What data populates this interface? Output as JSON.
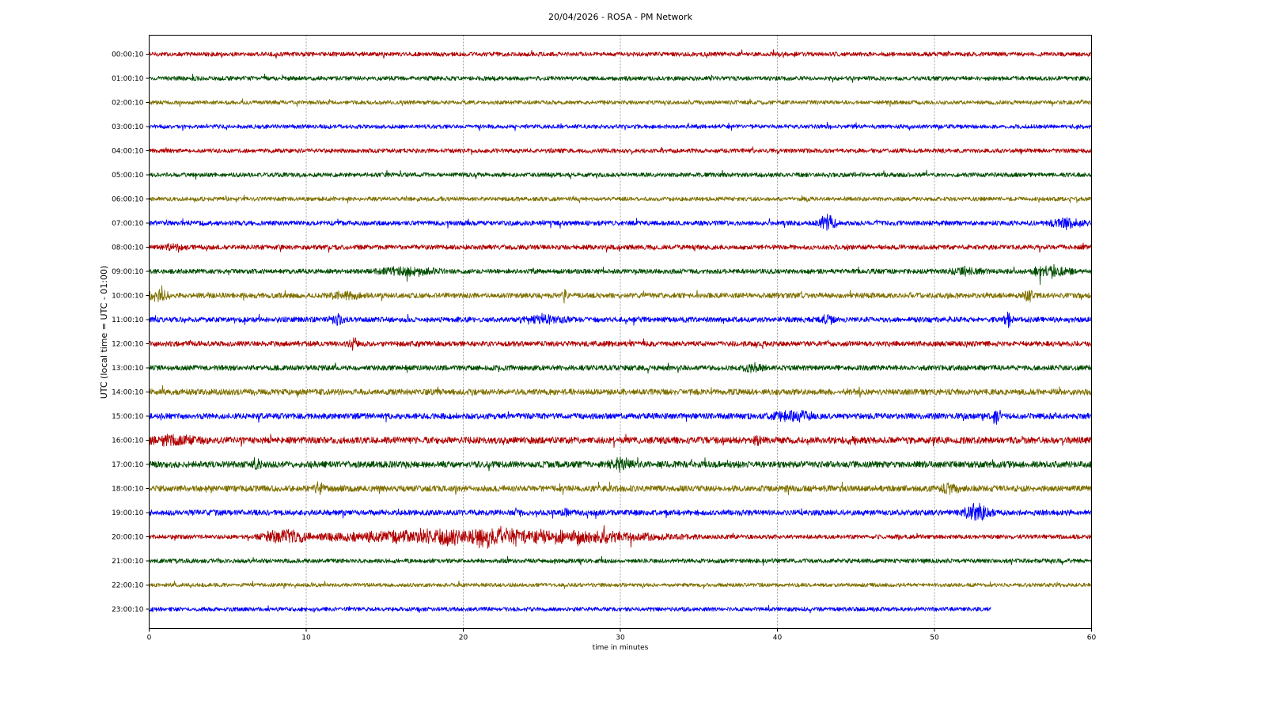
{
  "chart_data": {
    "type": "line",
    "title": "20/04/2026 - ROSA - PM Network",
    "xlabel": "time in minutes",
    "ylabel": "UTC (local time = UTC - 01:00)",
    "xlim": [
      0,
      60
    ],
    "x_ticks": [
      "0",
      "10",
      "20",
      "30",
      "40",
      "50",
      "60"
    ],
    "grid": "vertical dotted lines at major x ticks",
    "legend": "none",
    "color_cycle": [
      "#b10000",
      "#004d00",
      "#7f7000",
      "#0000ff"
    ],
    "rows": [
      {
        "label": "00:00:10",
        "color": "#b10000",
        "amp": 0.18,
        "end": 60,
        "events": []
      },
      {
        "label": "01:00:10",
        "color": "#004d00",
        "amp": 0.18,
        "end": 60,
        "events": []
      },
      {
        "label": "02:00:10",
        "color": "#7f7000",
        "amp": 0.17,
        "end": 60,
        "events": []
      },
      {
        "label": "03:00:10",
        "color": "#0000ff",
        "amp": 0.17,
        "end": 60,
        "events": []
      },
      {
        "label": "04:00:10",
        "color": "#b10000",
        "amp": 0.18,
        "end": 60,
        "events": []
      },
      {
        "label": "05:00:10",
        "color": "#004d00",
        "amp": 0.18,
        "end": 60,
        "events": []
      },
      {
        "label": "06:00:10",
        "color": "#7f7000",
        "amp": 0.17,
        "end": 60,
        "events": []
      },
      {
        "label": "07:00:10",
        "color": "#0000ff",
        "amp": 0.2,
        "end": 60,
        "events": [
          [
            43.2,
            0.8,
            0.55
          ],
          [
            58.5,
            1.5,
            0.35
          ]
        ]
      },
      {
        "label": "08:00:10",
        "color": "#b10000",
        "amp": 0.2,
        "end": 60,
        "events": [
          [
            1.6,
            0.6,
            0.3
          ]
        ]
      },
      {
        "label": "09:00:10",
        "color": "#004d00",
        "amp": 0.2,
        "end": 60,
        "events": [
          [
            16.5,
            2.5,
            0.3
          ],
          [
            57.5,
            1.5,
            0.5
          ],
          [
            52.0,
            1.5,
            0.2
          ]
        ]
      },
      {
        "label": "10:00:10",
        "color": "#7f7000",
        "amp": 0.22,
        "end": 60,
        "events": [
          [
            0.5,
            1.2,
            0.35
          ],
          [
            12.5,
            1.5,
            0.2
          ],
          [
            26.5,
            0.3,
            0.45
          ],
          [
            56.0,
            0.5,
            0.3
          ]
        ]
      },
      {
        "label": "11:00:10",
        "color": "#0000ff",
        "amp": 0.22,
        "end": 60,
        "events": [
          [
            12.0,
            0.5,
            0.35
          ],
          [
            25.0,
            2.0,
            0.25
          ],
          [
            43.2,
            0.5,
            0.3
          ],
          [
            54.7,
            0.4,
            0.45
          ]
        ]
      },
      {
        "label": "12:00:10",
        "color": "#b10000",
        "amp": 0.22,
        "end": 60,
        "events": [
          [
            13.0,
            0.4,
            0.45
          ]
        ]
      },
      {
        "label": "13:00:10",
        "color": "#004d00",
        "amp": 0.22,
        "end": 60,
        "events": [
          [
            38.5,
            1.0,
            0.3
          ]
        ]
      },
      {
        "label": "14:00:10",
        "color": "#7f7000",
        "amp": 0.25,
        "end": 60,
        "events": []
      },
      {
        "label": "15:00:10",
        "color": "#0000ff",
        "amp": 0.25,
        "end": 60,
        "events": [
          [
            41.0,
            1.8,
            0.35
          ],
          [
            54.0,
            0.3,
            0.5
          ]
        ]
      },
      {
        "label": "16:00:10",
        "color": "#b10000",
        "amp": 0.28,
        "end": 60,
        "events": [
          [
            1.5,
            2.5,
            0.25
          ],
          [
            38.8,
            0.4,
            0.35
          ],
          [
            44.8,
            0.4,
            0.3
          ]
        ]
      },
      {
        "label": "17:00:10",
        "color": "#004d00",
        "amp": 0.27,
        "end": 60,
        "events": [
          [
            30.0,
            1.0,
            0.35
          ],
          [
            6.8,
            0.4,
            0.3
          ]
        ]
      },
      {
        "label": "18:00:10",
        "color": "#7f7000",
        "amp": 0.26,
        "end": 60,
        "events": [
          [
            10.8,
            0.5,
            0.3
          ],
          [
            51.0,
            0.8,
            0.25
          ]
        ]
      },
      {
        "label": "19:00:10",
        "color": "#0000ff",
        "amp": 0.23,
        "end": 60,
        "events": [
          [
            52.8,
            1.2,
            0.55
          ],
          [
            26.5,
            0.3,
            0.3
          ]
        ]
      },
      {
        "label": "20:00:10",
        "color": "#b10000",
        "amp": 0.18,
        "end": 60,
        "events": [
          [
            21.5,
            14.0,
            0.55
          ],
          [
            8.5,
            2.0,
            0.45
          ],
          [
            29.0,
            0.3,
            0.5
          ]
        ]
      },
      {
        "label": "21:00:10",
        "color": "#004d00",
        "amp": 0.18,
        "end": 60,
        "events": []
      },
      {
        "label": "22:00:10",
        "color": "#7f7000",
        "amp": 0.16,
        "end": 60,
        "events": []
      },
      {
        "label": "23:00:10",
        "color": "#0000ff",
        "amp": 0.17,
        "end": 53.6,
        "events": []
      }
    ]
  }
}
